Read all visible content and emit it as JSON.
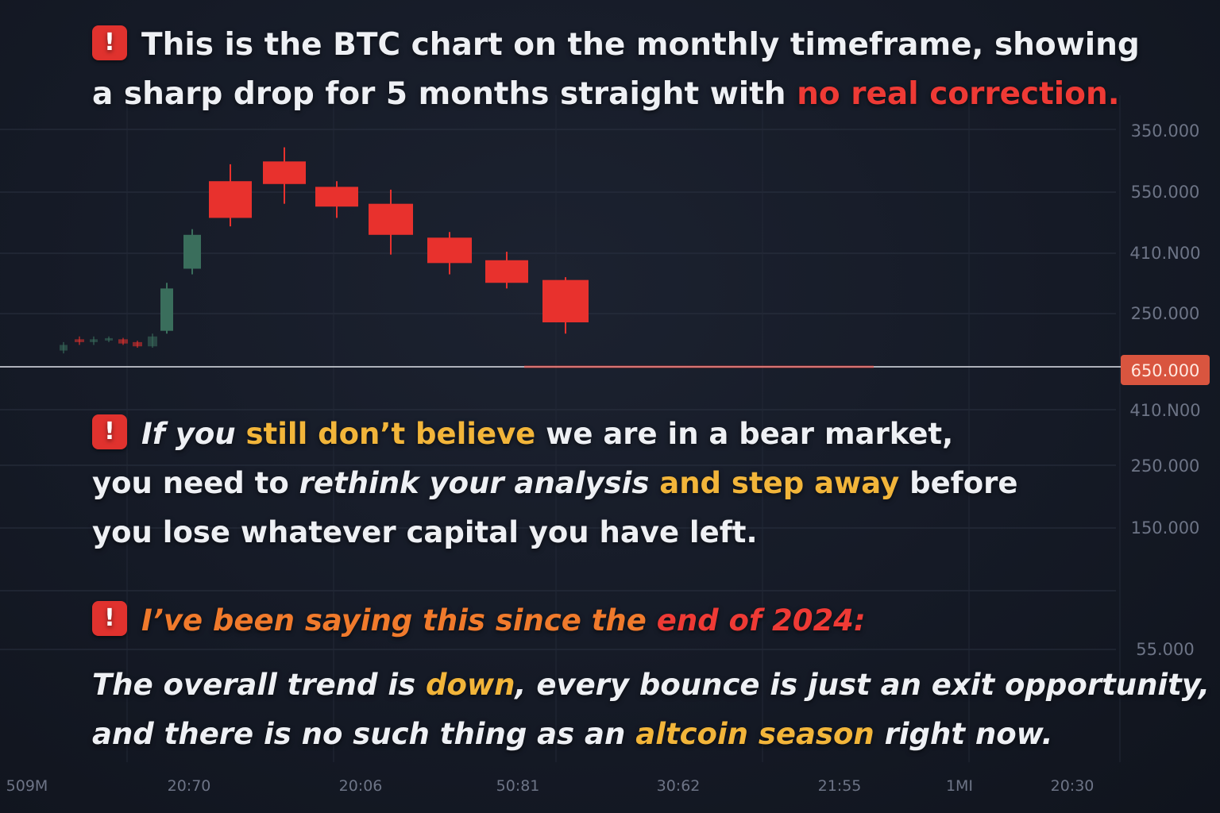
{
  "headline": {
    "line1": "This is the BTC chart on the monthly timeframe, showing",
    "line2_pre": "a sharp drop for 5 months straight with ",
    "line2_highlight": "no real correction."
  },
  "warning": {
    "l1_a": "If you ",
    "l1_b": "still don’t believe",
    "l1_c": " we are in a bear market,",
    "l2_a": "you need to ",
    "l2_b": "rethink your analysis",
    "l2_c": " and ",
    "l2_d": "step away",
    "l2_e": " before",
    "l3": "you lose whatever capital you have left."
  },
  "since": {
    "a": "I’ve been saying this since the ",
    "b": "end of 2024:"
  },
  "trend": {
    "l1_a": "The overall trend is ",
    "l1_b": "down",
    "l1_c": ", every bounce is just an exit opportunity,",
    "l2_a": "and there is no such thing as an ",
    "l2_b": "altcoin season",
    "l2_c": " right now."
  },
  "price_tag": "650.000",
  "colors": {
    "bull": "#3a6e5c",
    "bear": "#e8312d",
    "accent_red": "#ee3a35",
    "accent_yellow": "#f2b53a",
    "accent_orange": "#f07a2c"
  },
  "chart_data": {
    "type": "candlestick",
    "y_tick_labels": [
      "350.000",
      "550.000",
      "410.N00",
      "250.000",
      "410.N00",
      "250.000",
      "150.000",
      "55.000"
    ],
    "x_tick_labels": [
      "509M",
      "20:70",
      "20:06",
      "50:81",
      "30:62",
      "21:55",
      "1MI",
      "20:30"
    ],
    "candles": [
      {
        "open": 8,
        "close": 10,
        "high": 11,
        "low": 7,
        "dir": "up"
      },
      {
        "open": 12,
        "close": 11,
        "high": 13,
        "low": 10,
        "dir": "down"
      },
      {
        "open": 11,
        "close": 12,
        "high": 13,
        "low": 10,
        "dir": "up"
      },
      {
        "open": 12,
        "close": 12.4,
        "high": 13,
        "low": 11,
        "dir": "up"
      },
      {
        "open": 12,
        "close": 10.5,
        "high": 12.5,
        "low": 10,
        "dir": "down"
      },
      {
        "open": 11,
        "close": 9.5,
        "high": 11.5,
        "low": 9,
        "dir": "down"
      },
      {
        "open": 9.5,
        "close": 13,
        "high": 14,
        "low": 9,
        "dir": "up"
      },
      {
        "open": 15,
        "close": 30,
        "high": 32,
        "low": 14,
        "dir": "up"
      },
      {
        "open": 37,
        "close": 49,
        "high": 51,
        "low": 35,
        "dir": "up"
      },
      {
        "open": 68,
        "close": 55,
        "high": 74,
        "low": 52,
        "dir": "down"
      },
      {
        "open": 75,
        "close": 67,
        "high": 80,
        "low": 60,
        "dir": "down"
      },
      {
        "open": 66,
        "close": 59,
        "high": 68,
        "low": 55,
        "dir": "down"
      },
      {
        "open": 60,
        "close": 49,
        "high": 65,
        "low": 42,
        "dir": "down"
      },
      {
        "open": 48,
        "close": 39,
        "high": 50,
        "low": 35,
        "dir": "down"
      },
      {
        "open": 40,
        "close": 32,
        "high": 43,
        "low": 30,
        "dir": "down"
      },
      {
        "open": 33,
        "close": 18,
        "high": 34,
        "low": 14,
        "dir": "down"
      }
    ]
  }
}
